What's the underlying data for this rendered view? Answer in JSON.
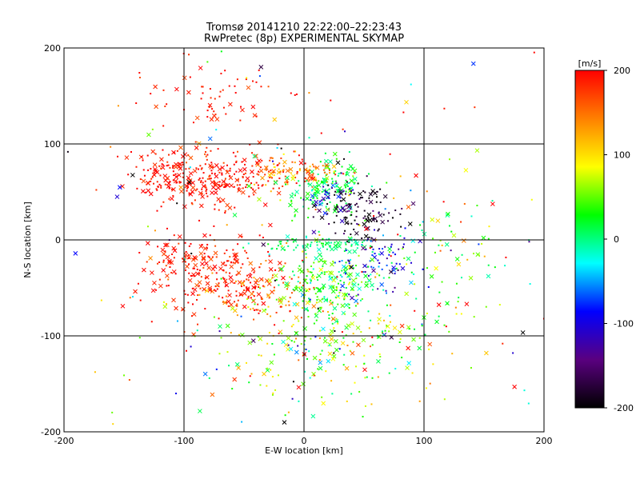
{
  "chart_data": {
    "type": "scatter",
    "title": "Tromsø 20141210 22:22:00–22:23:43",
    "subtitle": "RwPretec (8p) EXPERIMENTAL SKYMAP",
    "xlabel": "E-W location [km]",
    "ylabel": "N-S location [km]",
    "xlim": [
      -200,
      200
    ],
    "ylim": [
      -200,
      200
    ],
    "xticks": [
      -200,
      -100,
      0,
      100,
      200
    ],
    "yticks": [
      -200,
      -100,
      0,
      100,
      200
    ],
    "grid": true,
    "colorbar": {
      "label": "[m/s]",
      "range": [
        -200,
        200
      ],
      "ticks": [
        -200,
        -100,
        0,
        100,
        200
      ],
      "colormap": [
        "#000000",
        "#5a0080",
        "#0000ff",
        "#00ffff",
        "#00ff00",
        "#ffff00",
        "#ff8000",
        "#ff0000"
      ]
    },
    "marker_types": [
      "cross",
      "dot"
    ],
    "clusters": [
      {
        "center": [
          -75,
          65
        ],
        "spread": [
          30,
          16
        ],
        "count": 260,
        "velocity": 190,
        "vspread": 15
      },
      {
        "center": [
          -110,
          68
        ],
        "spread": [
          12,
          10
        ],
        "count": 60,
        "velocity": 195,
        "vspread": 8
      },
      {
        "center": [
          -70,
          145
        ],
        "spread": [
          28,
          18
        ],
        "count": 60,
        "velocity": 190,
        "vspread": 12
      },
      {
        "center": [
          -25,
          70
        ],
        "spread": [
          12,
          10
        ],
        "count": 50,
        "velocity": 140,
        "vspread": 30
      },
      {
        "center": [
          15,
          55
        ],
        "spread": [
          16,
          14
        ],
        "count": 130,
        "velocity": 15,
        "vspread": 20
      },
      {
        "center": [
          10,
          70
        ],
        "spread": [
          10,
          6
        ],
        "count": 40,
        "velocity": 150,
        "vspread": 40
      },
      {
        "center": [
          45,
          30
        ],
        "spread": [
          18,
          16
        ],
        "count": 110,
        "velocity": -190,
        "vspread": 18
      },
      {
        "center": [
          25,
          45
        ],
        "spread": [
          12,
          10
        ],
        "count": 40,
        "velocity": -110,
        "vspread": 25
      },
      {
        "center": [
          -80,
          -35
        ],
        "spread": [
          28,
          22
        ],
        "count": 230,
        "velocity": 190,
        "vspread": 15
      },
      {
        "center": [
          -30,
          -55
        ],
        "spread": [
          18,
          14
        ],
        "count": 90,
        "velocity": 160,
        "vspread": 30
      },
      {
        "center": [
          20,
          -50
        ],
        "spread": [
          22,
          20
        ],
        "count": 210,
        "velocity": 30,
        "vspread": 28
      },
      {
        "center": [
          10,
          -5
        ],
        "spread": [
          25,
          4
        ],
        "count": 80,
        "velocity": 5,
        "vspread": 12
      },
      {
        "center": [
          60,
          -20
        ],
        "spread": [
          20,
          18
        ],
        "count": 80,
        "velocity": -100,
        "vspread": 40
      },
      {
        "center": [
          35,
          -110
        ],
        "spread": [
          45,
          30
        ],
        "count": 140,
        "velocity": 70,
        "vspread": 40
      },
      {
        "center": [
          -20,
          -120
        ],
        "spread": [
          30,
          28
        ],
        "count": 60,
        "velocity": -10,
        "vspread": 90
      },
      {
        "center": [
          110,
          -30
        ],
        "spread": [
          35,
          40
        ],
        "count": 80,
        "velocity": 20,
        "vspread": 40
      },
      {
        "center": [
          0,
          0
        ],
        "spread": [
          120,
          120
        ],
        "count": 260,
        "velocity": 80,
        "vspread": 150
      }
    ]
  }
}
